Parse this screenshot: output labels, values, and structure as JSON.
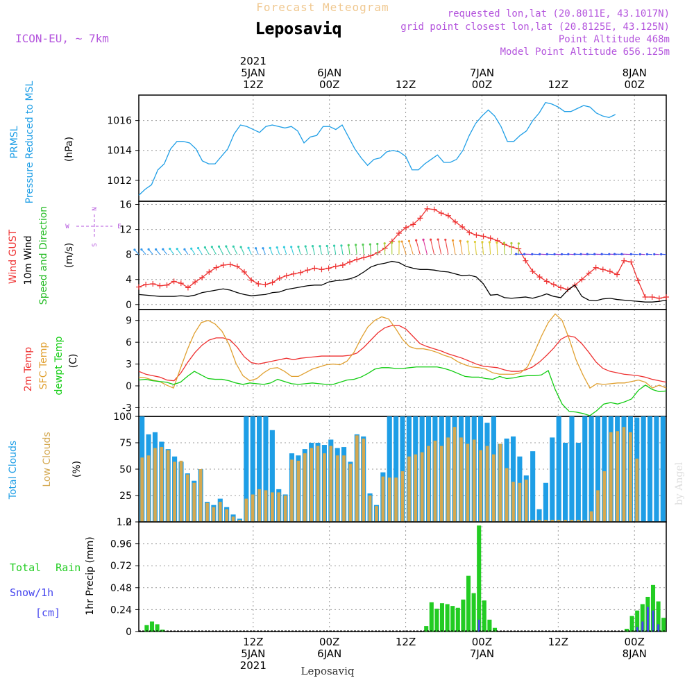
{
  "header": {
    "product": "Forecast Meteogram",
    "model": "ICON-EU, ~ 7km",
    "location": "Leposaviq",
    "requested": "requested lon,lat (20.8011E, 43.1017N)",
    "grid_point": "grid point closest lon,lat (20.8125E, 43.125N)",
    "point_altitude": "Point Altitude 468m",
    "model_altitude": "Model Point Altitude 656.125m",
    "footer_location": "Leposaviq",
    "watermark": "by Angel"
  },
  "colors": {
    "pressure": "#1e9ee6",
    "gust": "#ee3030",
    "wind": "#000000",
    "wind_label": "#22bb22",
    "t2m": "#ee3030",
    "sfc": "#e0a030",
    "dewpt": "#11cc11",
    "total_cloud": "#1e9ee6",
    "low_cloud": "#d4a850",
    "rain": "#22cc22",
    "snow": "#4444ee",
    "purple": "#b455dd",
    "header_orange": "#f0c890"
  },
  "chart_data": [
    {
      "type": "line",
      "panel": "pressure",
      "ylabel_lines": [
        "PRMSL",
        "Pressure Reduced to MSL"
      ],
      "unit": "(hPa)",
      "ylim": [
        1010.6,
        1017.7
      ],
      "yticks": [
        "1012",
        "1014",
        "1016"
      ],
      "x_start_hour": -6,
      "x_step_hours": 1,
      "grid": true,
      "series": [
        {
          "values": [
            1011.0,
            1011.4,
            1011.7,
            1012.7,
            1013.1,
            1014.1,
            1014.6,
            1014.6,
            1014.5,
            1014.1,
            1013.3,
            1013.1,
            1013.1,
            1013.6,
            1014.1,
            1015.1,
            1015.7,
            1015.6,
            1015.4,
            1015.2,
            1015.6,
            1015.7,
            1015.6,
            1015.5,
            1015.6,
            1015.3,
            1014.5,
            1014.9,
            1015.0,
            1015.6,
            1015.6,
            1015.4,
            1015.7,
            1014.9,
            1014.1,
            1013.5,
            1013.0,
            1013.4,
            1013.5,
            1013.9,
            1014.0,
            1013.9,
            1013.6,
            1012.7,
            1012.7,
            1013.1,
            1013.4,
            1013.7,
            1013.2,
            1013.2,
            1013.4,
            1014.0,
            1015.0,
            1015.8,
            1016.3,
            1016.7,
            1016.3,
            1015.6,
            1014.6,
            1014.6,
            1015.0,
            1015.3,
            1016.0,
            1016.5,
            1017.2,
            1017.1,
            1016.9,
            1016.6,
            1016.6,
            1016.8,
            1017.0,
            1016.9,
            1016.5,
            1016.3,
            1016.2,
            1016.4
          ]
        }
      ]
    },
    {
      "type": "line",
      "panel": "wind",
      "ylabel_lines": [
        "Wind GUST",
        "10m Wind",
        "Speed and Direction"
      ],
      "unit": "(m/s)",
      "ylim": [
        -0.8,
        16.5
      ],
      "yticks": [
        "0",
        "4",
        "8",
        "12",
        "16"
      ],
      "compass": {
        "n": "N",
        "s": "S",
        "w": "W",
        "e": "E"
      },
      "series": [
        {
          "name": "Wind GUST",
          "values": [
            2.8,
            3.2,
            3.3,
            3.0,
            3.1,
            3.7,
            3.4,
            2.7,
            3.6,
            4.3,
            5.2,
            5.9,
            6.3,
            6.4,
            6.1,
            5.2,
            3.9,
            3.3,
            3.2,
            3.5,
            4.2,
            4.6,
            4.9,
            5.1,
            5.5,
            5.8,
            5.6,
            5.8,
            6.1,
            6.3,
            6.8,
            7.2,
            7.5,
            7.8,
            8.3,
            9.0,
            10.1,
            11.4,
            12.3,
            12.8,
            13.8,
            15.3,
            15.2,
            14.6,
            14.2,
            13.2,
            12.4,
            11.5,
            11.1,
            10.9,
            10.6,
            10.2,
            9.6,
            9.2,
            8.9,
            7.0,
            5.3,
            4.4,
            3.7,
            3.2,
            2.7,
            2.4,
            3.1,
            4.0,
            5.0,
            5.9,
            5.6,
            5.3,
            4.8,
            7.0,
            6.8,
            3.8,
            1.2,
            1.2,
            1.0,
            1.2
          ]
        },
        {
          "name": "10m Wind",
          "values": [
            1.6,
            1.5,
            1.4,
            1.3,
            1.3,
            1.3,
            1.4,
            1.3,
            1.5,
            1.9,
            2.1,
            2.3,
            2.5,
            2.3,
            1.9,
            1.6,
            1.4,
            1.5,
            1.6,
            1.9,
            2.0,
            2.4,
            2.6,
            2.8,
            3.0,
            3.1,
            3.1,
            3.6,
            3.8,
            3.9,
            4.1,
            4.5,
            5.2,
            6.0,
            6.4,
            6.6,
            6.9,
            6.7,
            6.1,
            5.8,
            5.6,
            5.6,
            5.5,
            5.3,
            5.2,
            4.9,
            4.6,
            4.7,
            4.4,
            3.3,
            1.5,
            1.6,
            1.1,
            1.0,
            1.1,
            1.2,
            1.0,
            1.3,
            1.7,
            1.3,
            1.1,
            2.3,
            3.1,
            1.3,
            0.7,
            0.6,
            0.9,
            1.0,
            0.8,
            0.7,
            0.6,
            0.5,
            0.4,
            0.4,
            0.5,
            0.7
          ]
        }
      ]
    },
    {
      "type": "line",
      "panel": "temperature",
      "ylabel_lines": [
        "2m Temp",
        "SFC Temp",
        "dewpt Temp"
      ],
      "unit": "(C)",
      "ylim": [
        -4.2,
        10.5
      ],
      "yticks": [
        "-3",
        "0",
        "3",
        "6",
        "9"
      ],
      "series": [
        {
          "name": "2m Temp",
          "values": [
            2.0,
            1.6,
            1.4,
            1.2,
            0.8,
            0.7,
            1.8,
            3.3,
            4.6,
            5.6,
            6.3,
            6.6,
            6.6,
            6.3,
            5.3,
            4.0,
            3.2,
            3.0,
            3.2,
            3.4,
            3.6,
            3.8,
            3.6,
            3.8,
            3.9,
            4.0,
            4.1,
            4.1,
            4.1,
            4.1,
            4.2,
            4.5,
            5.3,
            6.3,
            7.3,
            8.0,
            8.3,
            8.3,
            7.8,
            6.8,
            5.8,
            5.4,
            5.1,
            4.8,
            4.4,
            4.1,
            3.8,
            3.4,
            3.0,
            2.7,
            2.6,
            2.5,
            2.2,
            2.0,
            2.0,
            2.2,
            2.6,
            3.3,
            4.2,
            5.2,
            6.4,
            6.9,
            6.7,
            5.8,
            4.6,
            3.3,
            2.4,
            2.0,
            1.8,
            1.6,
            1.5,
            1.4,
            1.2,
            0.9,
            0.7,
            0.5
          ]
        },
        {
          "name": "SFC Temp",
          "values": [
            1.2,
            1.1,
            0.8,
            0.6,
            0.1,
            -0.3,
            2.4,
            5.0,
            7.2,
            8.7,
            9.0,
            8.5,
            7.5,
            5.7,
            3.1,
            1.4,
            0.7,
            1.0,
            1.8,
            2.4,
            2.5,
            2.0,
            1.3,
            1.3,
            1.8,
            2.3,
            2.6,
            2.9,
            3.0,
            2.9,
            3.4,
            4.6,
            6.5,
            8.1,
            9.0,
            9.5,
            9.2,
            7.9,
            6.4,
            5.4,
            5.1,
            5.1,
            4.9,
            4.6,
            4.2,
            3.9,
            3.3,
            2.9,
            2.6,
            2.5,
            2.3,
            1.8,
            1.6,
            1.6,
            1.6,
            1.8,
            2.6,
            4.6,
            6.8,
            8.7,
            9.9,
            9.0,
            6.5,
            3.6,
            1.5,
            -0.3,
            0.3,
            0.2,
            0.3,
            0.4,
            0.4,
            0.6,
            0.8,
            0.5,
            -0.3,
            0.1,
            -0.3
          ]
        },
        {
          "name": "dewpt Temp",
          "values": [
            0.8,
            0.9,
            0.7,
            0.6,
            0.5,
            0.2,
            0.5,
            1.3,
            2.0,
            1.5,
            1.0,
            0.9,
            0.9,
            0.7,
            0.4,
            0.2,
            0.4,
            0.3,
            0.2,
            0.4,
            0.9,
            0.6,
            0.3,
            0.2,
            0.3,
            0.4,
            0.3,
            0.2,
            0.2,
            0.5,
            0.8,
            0.9,
            1.2,
            1.7,
            2.3,
            2.5,
            2.5,
            2.4,
            2.4,
            2.5,
            2.6,
            2.6,
            2.6,
            2.6,
            2.4,
            2.1,
            1.7,
            1.3,
            1.2,
            1.2,
            1.0,
            0.9,
            1.3,
            1.0,
            1.1,
            1.3,
            1.4,
            1.4,
            1.5,
            2.1,
            -0.5,
            -2.5,
            -3.5,
            -3.6,
            -3.8,
            -4.1,
            -3.4,
            -2.5,
            -2.3,
            -2.5,
            -2.2,
            -1.8,
            -0.6,
            0.1,
            -0.5,
            -0.8,
            -0.7
          ]
        }
      ]
    },
    {
      "type": "bar",
      "panel": "clouds",
      "ylabel_lines": [
        "Total Clouds",
        "Low Clouds"
      ],
      "unit": "(%)",
      "ylim": [
        0,
        100
      ],
      "yticks": [
        "0",
        "25",
        "50",
        "75",
        "100"
      ],
      "series": [
        {
          "name": "Total Clouds",
          "values": [
            100,
            83,
            85,
            76,
            69,
            62,
            57,
            46,
            39,
            50,
            19,
            16,
            22,
            14,
            7,
            3,
            100,
            100,
            100,
            100,
            87,
            31,
            26,
            65,
            63,
            69,
            75,
            75,
            73,
            78,
            70,
            71,
            57,
            83,
            81,
            27,
            16,
            47,
            100,
            100,
            100,
            100,
            100,
            100,
            100,
            100,
            100,
            100,
            100,
            100,
            100,
            100,
            100,
            94,
            100,
            74,
            79,
            81,
            62,
            44,
            67,
            12,
            37,
            80,
            100,
            75,
            100,
            75,
            100,
            100,
            100,
            100,
            100,
            100,
            100,
            100,
            99,
            100,
            100,
            100,
            100
          ]
        },
        {
          "name": "Low Clouds",
          "values": [
            61,
            63,
            70,
            71,
            68,
            57,
            58,
            45,
            37,
            50,
            18,
            14,
            19,
            12,
            5,
            2,
            22,
            26,
            31,
            30,
            28,
            28,
            25,
            59,
            58,
            65,
            70,
            72,
            65,
            72,
            63,
            63,
            55,
            82,
            79,
            25,
            15,
            43,
            42,
            42,
            48,
            62,
            64,
            66,
            72,
            77,
            72,
            80,
            90,
            80,
            74,
            78,
            68,
            72,
            64,
            74,
            51,
            38,
            37,
            40,
            2,
            2,
            2,
            2,
            2,
            2,
            2,
            2,
            2,
            10,
            30,
            48,
            85,
            86,
            90,
            85,
            60
          ]
        }
      ]
    },
    {
      "type": "bar",
      "panel": "precip",
      "ylabel_lines": [
        "Total Rain",
        "Snow/1h",
        "[cm]"
      ],
      "unit": "1hr Precip (mm)",
      "ylim": [
        0,
        1.2
      ],
      "yticks": [
        "0",
        "0.24",
        "0.48",
        "0.72",
        "0.96",
        "1.2"
      ],
      "series": [
        {
          "name": "Total Rain",
          "values": [
            0,
            0.07,
            0.11,
            0.08,
            0.02,
            0,
            0,
            0,
            0,
            0,
            0,
            0,
            0,
            0,
            0,
            0,
            0,
            0,
            0,
            0,
            0,
            0,
            0,
            0,
            0,
            0,
            0,
            0,
            0,
            0,
            0,
            0,
            0,
            0,
            0,
            0,
            0,
            0,
            0,
            0,
            0,
            0,
            0,
            0,
            0,
            0,
            0,
            0,
            0,
            0,
            0,
            0,
            0,
            0,
            0.06,
            0.32,
            0.25,
            0.31,
            0.3,
            0.28,
            0.26,
            0.35,
            0.61,
            0.42,
            1.16,
            0.34,
            0.13,
            0.04,
            0,
            0,
            0,
            0,
            0,
            0,
            0,
            0,
            0,
            0,
            0,
            0,
            0,
            0,
            0,
            0,
            0,
            0,
            0,
            0,
            0,
            0,
            0,
            0,
            0.03,
            0.17,
            0.23,
            0.3,
            0.38,
            0.51,
            0.33,
            0.15
          ]
        },
        {
          "name": "Snow/1h",
          "values": [
            0,
            0,
            0,
            0,
            0,
            0,
            0,
            0,
            0,
            0,
            0,
            0,
            0,
            0,
            0,
            0,
            0,
            0,
            0,
            0,
            0,
            0,
            0,
            0,
            0,
            0,
            0,
            0,
            0,
            0,
            0,
            0,
            0,
            0,
            0,
            0,
            0,
            0,
            0,
            0,
            0,
            0,
            0,
            0,
            0,
            0,
            0,
            0,
            0,
            0,
            0,
            0,
            0,
            0,
            0,
            0,
            0,
            0,
            0,
            0,
            0,
            0,
            0,
            0,
            0.13,
            0,
            0,
            0,
            0,
            0,
            0,
            0,
            0,
            0,
            0,
            0,
            0,
            0,
            0,
            0,
            0,
            0,
            0,
            0,
            0,
            0,
            0,
            0,
            0,
            0,
            0,
            0,
            0,
            0,
            0.05,
            0.11,
            0.27,
            0.23,
            0.08
          ]
        }
      ]
    }
  ],
  "top_axis": {
    "ticks": [
      {
        "hour": 12,
        "lines": [
          "2021",
          "5JAN",
          "12Z"
        ]
      },
      {
        "hour": 24,
        "lines": [
          "",
          "6JAN",
          "00Z"
        ]
      },
      {
        "hour": 36,
        "lines": [
          "",
          "",
          "12Z"
        ]
      },
      {
        "hour": 48,
        "lines": [
          "",
          "7JAN",
          "00Z"
        ]
      },
      {
        "hour": 60,
        "lines": [
          "",
          "",
          "12Z"
        ]
      },
      {
        "hour": 72,
        "lines": [
          "",
          "8JAN",
          "00Z"
        ]
      }
    ]
  },
  "bottom_axis": {
    "ticks": [
      {
        "hour": 12,
        "lines": [
          "12Z",
          "5JAN",
          "2021"
        ]
      },
      {
        "hour": 24,
        "lines": [
          "00Z",
          "6JAN",
          ""
        ]
      },
      {
        "hour": 36,
        "lines": [
          "12Z",
          "",
          ""
        ]
      },
      {
        "hour": 48,
        "lines": [
          "00Z",
          "7JAN",
          ""
        ]
      },
      {
        "hour": 60,
        "lines": [
          "12Z",
          "",
          ""
        ]
      },
      {
        "hour": 72,
        "lines": [
          "00Z",
          "8JAN",
          ""
        ]
      }
    ]
  }
}
